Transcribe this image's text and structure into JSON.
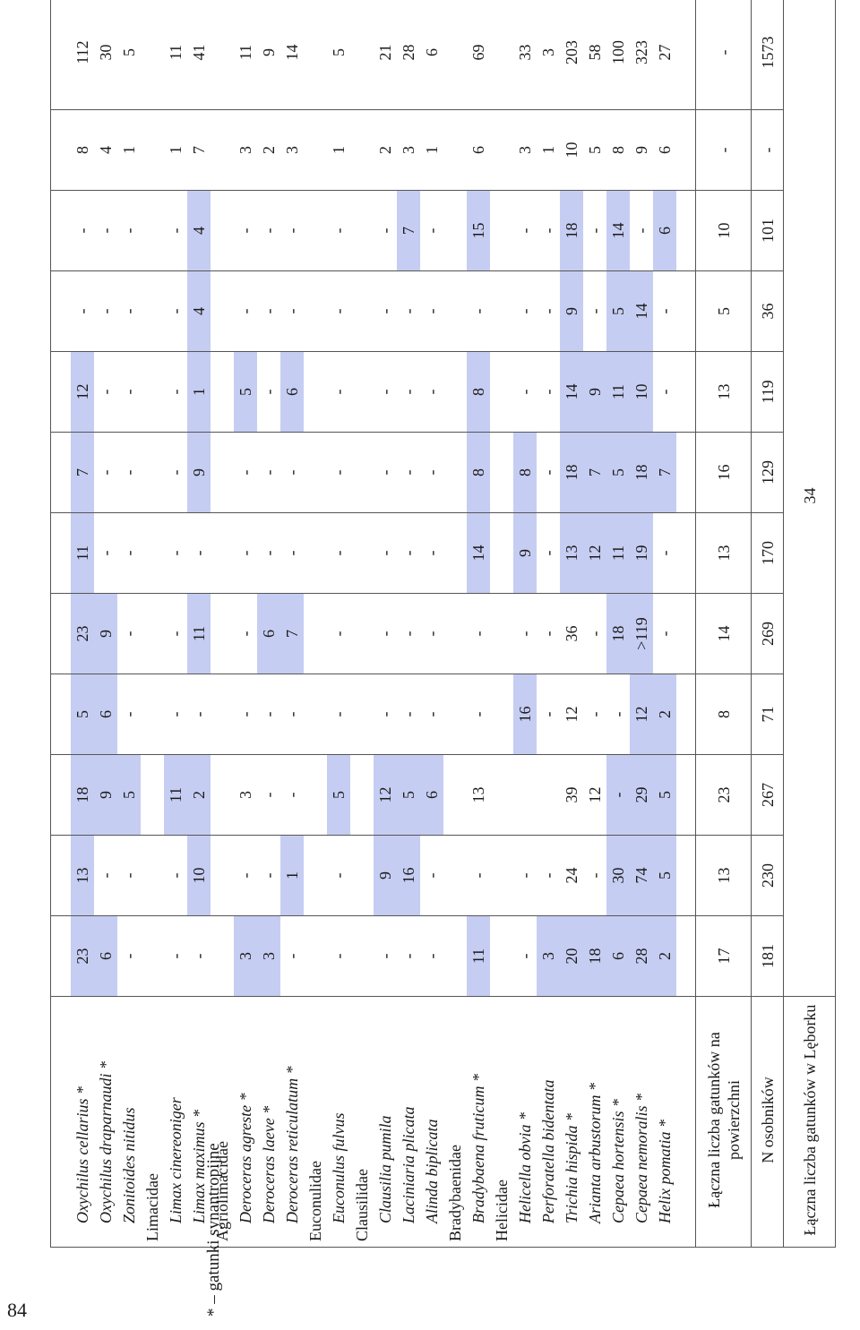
{
  "rows": [
    {
      "label": "Oxychilus cellarius *",
      "kind": "sp"
    },
    {
      "label": "Oxychilus draparnaudi *",
      "kind": "sp"
    },
    {
      "label": "Zonitoides nitidus",
      "kind": "sp"
    },
    {
      "label": "Limacidae",
      "kind": "fam"
    },
    {
      "label": "Limax cinereoniger",
      "kind": "sp"
    },
    {
      "label": "Limax maximus *",
      "kind": "sp"
    },
    {
      "label": "Agriolimacidae",
      "kind": "fam"
    },
    {
      "label": "Deroceras agreste *",
      "kind": "sp"
    },
    {
      "label": "Deroceras laeve *",
      "kind": "sp"
    },
    {
      "label": "Deroceras reticulatum *",
      "kind": "sp"
    },
    {
      "label": "Euconulidae",
      "kind": "fam"
    },
    {
      "label": "Euconulus fulvus",
      "kind": "sp"
    },
    {
      "label": "Clausilidae",
      "kind": "fam"
    },
    {
      "label": "Clausilia pumila",
      "kind": "sp"
    },
    {
      "label": "Laciniaria plicata",
      "kind": "sp"
    },
    {
      "label": "Alinda biplicata",
      "kind": "sp"
    },
    {
      "label": "Bradybaenidae",
      "kind": "fam"
    },
    {
      "label": "Bradybaena fruticum *",
      "kind": "sp"
    },
    {
      "label": "Helicidae",
      "kind": "fam"
    },
    {
      "label": "Helicella obvia *",
      "kind": "sp"
    },
    {
      "label": "Perforatella bidentata",
      "kind": "sp"
    },
    {
      "label": "Trichia hispida *",
      "kind": "sp"
    },
    {
      "label": "Arianta arbustorum *",
      "kind": "sp"
    },
    {
      "label": "Cepaea hortensis *",
      "kind": "sp"
    },
    {
      "label": "Cepaea nemoralis *",
      "kind": "sp"
    },
    {
      "label": "Helix pomatia *",
      "kind": "sp"
    }
  ],
  "columns": [
    [
      "23",
      "6",
      "-",
      "",
      "-",
      "-",
      "",
      "3",
      "3",
      "-",
      "",
      "-",
      "",
      "-",
      "-",
      "-",
      "",
      "11",
      "",
      "-",
      "3",
      "20",
      "18",
      "6",
      "28",
      "2"
    ],
    [
      "13",
      "-",
      "-",
      "",
      "-",
      "10",
      "",
      "-",
      "-",
      "1",
      "",
      "-",
      "",
      "9",
      "16",
      "-",
      "",
      "-",
      "",
      "-",
      "-",
      "24",
      "-",
      "30",
      "74",
      "5"
    ],
    [
      "18",
      "9",
      "5",
      "",
      "11",
      "2",
      "",
      "3",
      "-",
      "-",
      "",
      "5",
      "",
      "12",
      "5",
      "6",
      "",
      "13",
      "",
      "",
      "",
      "39",
      "12",
      "-",
      "29",
      "5"
    ],
    [
      "5",
      "6",
      "-",
      "",
      "-",
      "-",
      "",
      "-",
      "-",
      "-",
      "",
      "-",
      "",
      "-",
      "-",
      "-",
      "",
      "-",
      "",
      "16",
      "-",
      "12",
      "-",
      "-",
      "12",
      "2"
    ],
    [
      "23",
      "9",
      "-",
      "",
      "-",
      "11",
      "",
      "-",
      "6",
      "7",
      "",
      "-",
      "",
      "-",
      "-",
      "-",
      "",
      "-",
      "",
      "-",
      "-",
      "36",
      "-",
      "18",
      ">119",
      "-"
    ],
    [
      "11",
      "-",
      "-",
      "",
      "-",
      "-",
      "",
      "-",
      "-",
      "-",
      "",
      "-",
      "",
      "-",
      "-",
      "-",
      "",
      "14",
      "",
      "9",
      "-",
      "13",
      "12",
      "11",
      "19",
      "-"
    ],
    [
      "7",
      "-",
      "-",
      "",
      "-",
      "9",
      "",
      "-",
      "-",
      "-",
      "",
      "-",
      "",
      "-",
      "-",
      "-",
      "",
      "8",
      "",
      "8",
      "-",
      "18",
      "7",
      "5",
      "18",
      "7"
    ],
    [
      "12",
      "-",
      "-",
      "",
      "-",
      "1",
      "",
      "5",
      "-",
      "6",
      "",
      "-",
      "",
      "-",
      "-",
      "-",
      "",
      "8",
      "",
      "-",
      "-",
      "14",
      "9",
      "11",
      "10",
      "-"
    ],
    [
      "-",
      "-",
      "-",
      "",
      "-",
      "4",
      "",
      "-",
      "-",
      "-",
      "",
      "-",
      "",
      "-",
      "-",
      "-",
      "",
      "-",
      "",
      "-",
      "-",
      "9",
      "-",
      "5",
      "14",
      "-"
    ],
    [
      "-",
      "-",
      "-",
      "",
      "-",
      "4",
      "",
      "-",
      "-",
      "-",
      "",
      "-",
      "",
      "-",
      "7",
      "-",
      "",
      "15",
      "",
      "-",
      "-",
      "18",
      "-",
      "14",
      "-",
      "6"
    ],
    [
      "8",
      "4",
      "1",
      "",
      "1",
      "7",
      "",
      "3",
      "2",
      "3",
      "",
      "1",
      "",
      "2",
      "3",
      "1",
      "",
      "6",
      "",
      "3",
      "1",
      "10",
      "5",
      "8",
      "9",
      "6"
    ],
    [
      "112",
      "30",
      "5",
      "",
      "11",
      "41",
      "",
      "11",
      "9",
      "14",
      "",
      "5",
      "",
      "21",
      "28",
      "6",
      "",
      "69",
      "",
      "33",
      "3",
      "203",
      "58",
      "100",
      "323",
      "27"
    ]
  ],
  "highlight": [
    [
      1,
      1,
      0,
      0,
      0,
      0,
      0,
      1,
      1,
      0,
      0,
      0,
      0,
      0,
      0,
      0,
      0,
      1,
      0,
      0,
      1,
      1,
      1,
      1,
      1,
      1
    ],
    [
      1,
      0,
      0,
      0,
      0,
      1,
      0,
      0,
      0,
      1,
      0,
      0,
      0,
      1,
      1,
      0,
      0,
      0,
      0,
      0,
      0,
      0,
      0,
      1,
      1,
      1
    ],
    [
      1,
      1,
      1,
      0,
      1,
      1,
      0,
      0,
      0,
      0,
      0,
      1,
      0,
      1,
      1,
      1,
      0,
      0,
      0,
      0,
      0,
      0,
      0,
      1,
      1,
      1
    ],
    [
      1,
      1,
      0,
      0,
      0,
      0,
      0,
      0,
      0,
      0,
      0,
      0,
      0,
      0,
      0,
      0,
      0,
      0,
      0,
      1,
      0,
      0,
      0,
      0,
      1,
      1
    ],
    [
      1,
      1,
      0,
      0,
      0,
      1,
      0,
      0,
      1,
      1,
      0,
      0,
      0,
      0,
      0,
      0,
      0,
      0,
      0,
      0,
      0,
      0,
      0,
      1,
      1,
      0
    ],
    [
      1,
      0,
      0,
      0,
      0,
      0,
      0,
      0,
      0,
      0,
      0,
      0,
      0,
      0,
      0,
      0,
      0,
      1,
      0,
      1,
      0,
      1,
      1,
      1,
      1,
      0
    ],
    [
      1,
      0,
      0,
      0,
      0,
      1,
      0,
      0,
      0,
      0,
      0,
      0,
      0,
      0,
      0,
      0,
      0,
      1,
      0,
      1,
      0,
      1,
      1,
      1,
      1,
      1
    ],
    [
      1,
      0,
      0,
      0,
      0,
      1,
      0,
      1,
      0,
      1,
      0,
      0,
      0,
      0,
      0,
      0,
      0,
      1,
      0,
      0,
      0,
      1,
      1,
      1,
      1,
      0
    ],
    [
      0,
      0,
      0,
      0,
      0,
      1,
      0,
      0,
      0,
      0,
      0,
      0,
      0,
      0,
      0,
      0,
      0,
      0,
      0,
      0,
      0,
      1,
      0,
      1,
      1,
      0
    ],
    [
      0,
      0,
      0,
      0,
      0,
      1,
      0,
      0,
      0,
      0,
      0,
      0,
      0,
      0,
      1,
      0,
      0,
      1,
      0,
      0,
      0,
      1,
      0,
      1,
      0,
      1
    ],
    [
      0,
      0,
      0,
      0,
      0,
      0,
      0,
      0,
      0,
      0,
      0,
      0,
      0,
      0,
      0,
      0,
      0,
      0,
      0,
      0,
      0,
      0,
      0,
      0,
      0,
      0
    ],
    [
      0,
      0,
      0,
      0,
      0,
      0,
      0,
      0,
      0,
      0,
      0,
      0,
      0,
      0,
      0,
      0,
      0,
      0,
      0,
      0,
      0,
      0,
      0,
      0,
      0,
      0
    ]
  ],
  "summary": {
    "species_label": "Łączna liczba gatunków na powierzchni",
    "species_values": [
      "17",
      "13",
      "23",
      "8",
      "14",
      "13",
      "16",
      "13",
      "5",
      "10",
      "-",
      "-"
    ],
    "individuals_label": "N osobników",
    "individuals_values": [
      "181",
      "230",
      "267",
      "71",
      "269",
      "170",
      "129",
      "119",
      "36",
      "101",
      "-",
      "1573"
    ],
    "total_label": "Łączna liczba gatunków w Lęborku",
    "total_value": "34"
  },
  "footnote": "* – gatunki synantropijne",
  "page_number": "84"
}
